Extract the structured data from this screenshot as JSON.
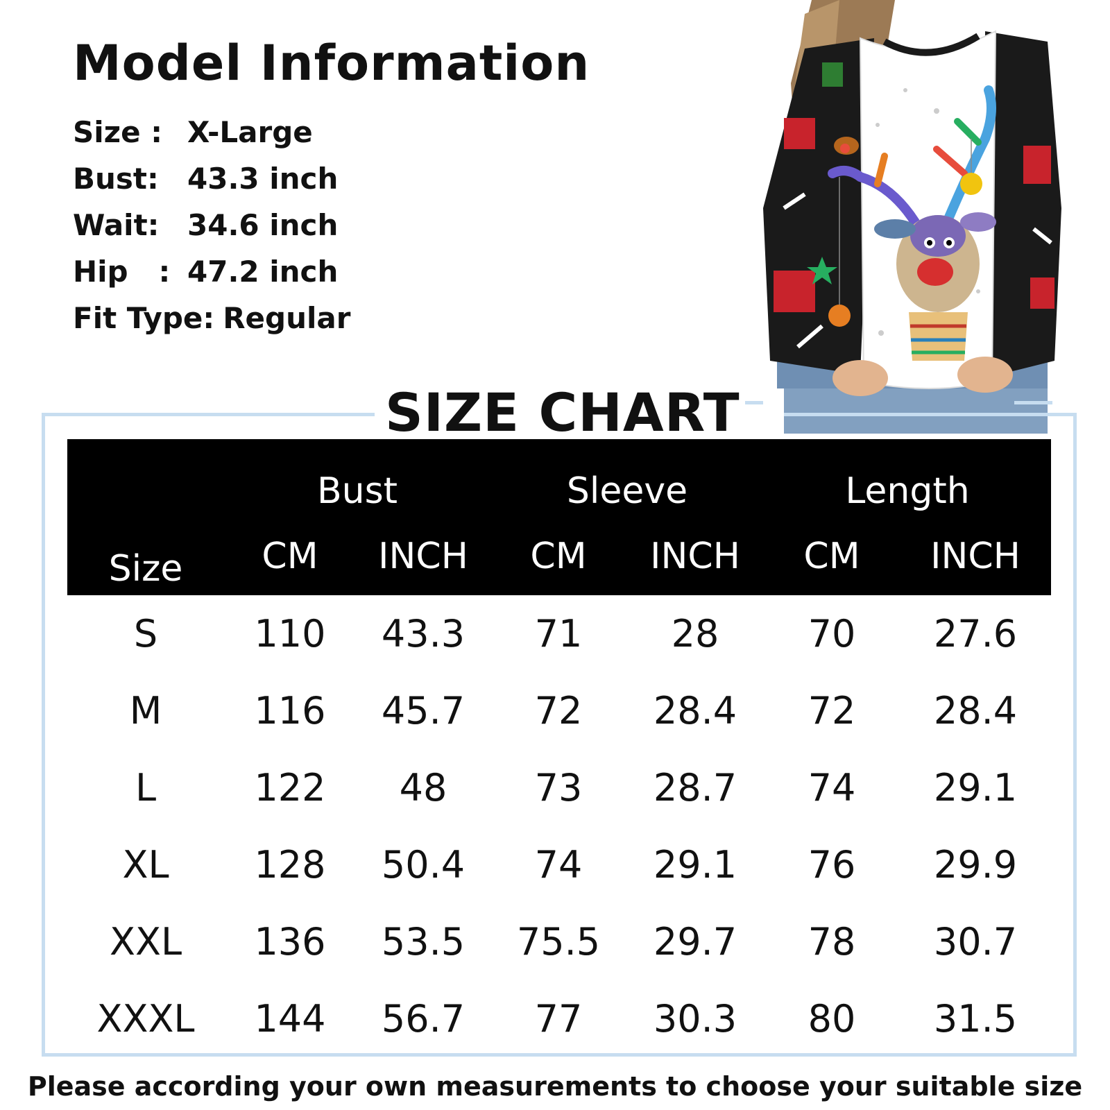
{
  "model_info": {
    "title": "Model Information",
    "rows": [
      {
        "label": "Size :",
        "value": "X-Large"
      },
      {
        "label": "Bust:",
        "value": "43.3 inch"
      },
      {
        "label": "Wait:",
        "value": "34.6 inch"
      },
      {
        "label": "Hip   :",
        "value": "47.2 inch"
      },
      {
        "label": "Fit Type:",
        "value": "Regular"
      }
    ]
  },
  "size_chart": {
    "title": "SIZE CHART",
    "size_header": "Size",
    "groups": [
      "Bust",
      "Sleeve",
      "Length"
    ],
    "units": [
      "CM",
      "INCH",
      "CM",
      "INCH",
      "CM",
      "INCH"
    ],
    "rows": [
      {
        "size": "S",
        "values": [
          "110",
          "43.3",
          "71",
          "28",
          "70",
          "27.6"
        ]
      },
      {
        "size": "M",
        "values": [
          "116",
          "45.7",
          "72",
          "28.4",
          "72",
          "28.4"
        ]
      },
      {
        "size": "L",
        "values": [
          "122",
          "48",
          "73",
          "28.7",
          "74",
          "29.1"
        ]
      },
      {
        "size": "XL",
        "values": [
          "128",
          "50.4",
          "74",
          "29.1",
          "76",
          "29.9"
        ]
      },
      {
        "size": "XXL",
        "values": [
          "136",
          "53.5",
          "75.5",
          "29.7",
          "78",
          "30.7"
        ]
      },
      {
        "size": "XXXL",
        "values": [
          "144",
          "56.7",
          "77",
          "30.3",
          "80",
          "31.5"
        ]
      }
    ]
  },
  "footer": {
    "note": "Please according your own measurements to choose your suitable size"
  },
  "colors": {
    "frame_border": "#c7ddf0",
    "table_header_bg": "#000000",
    "sweatshirt_sleeve": "#1a1a1a",
    "accent_red": "#c8232c"
  },
  "icons": {
    "product_photo": "reindeer-christmas-sweatshirt-photo"
  }
}
